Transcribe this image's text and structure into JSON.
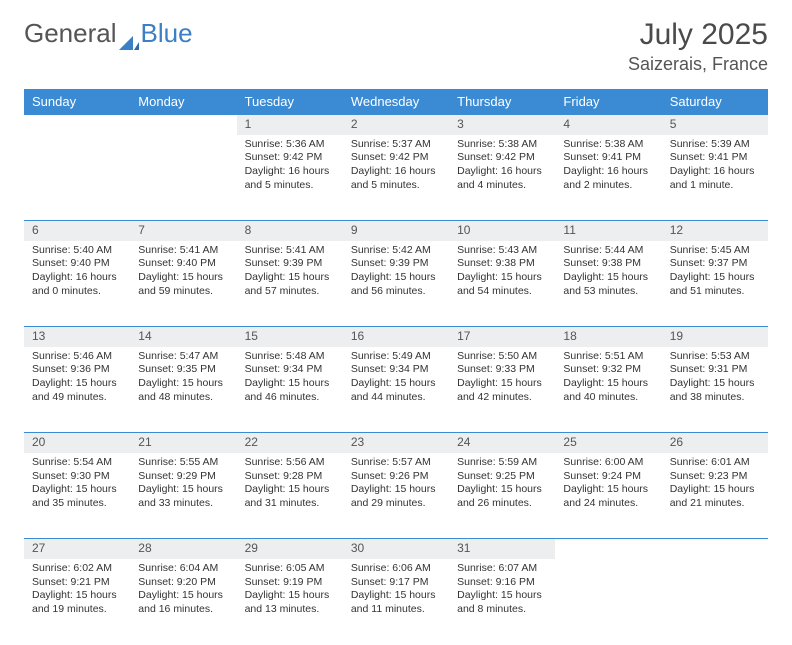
{
  "brand": {
    "part1": "General",
    "part2": "Blue"
  },
  "title": "July 2025",
  "location": "Saizerais, France",
  "colors": {
    "header_bg": "#3b8bd4",
    "header_text": "#ffffff",
    "daynum_bg": "#eceef0",
    "border": "#3b8bd4",
    "body_text": "#333333",
    "page_bg": "#ffffff"
  },
  "day_headers": [
    "Sunday",
    "Monday",
    "Tuesday",
    "Wednesday",
    "Thursday",
    "Friday",
    "Saturday"
  ],
  "weeks": [
    [
      null,
      null,
      {
        "n": "1",
        "sunrise": "5:36 AM",
        "sunset": "9:42 PM",
        "daylight": "16 hours and 5 minutes."
      },
      {
        "n": "2",
        "sunrise": "5:37 AM",
        "sunset": "9:42 PM",
        "daylight": "16 hours and 5 minutes."
      },
      {
        "n": "3",
        "sunrise": "5:38 AM",
        "sunset": "9:42 PM",
        "daylight": "16 hours and 4 minutes."
      },
      {
        "n": "4",
        "sunrise": "5:38 AM",
        "sunset": "9:41 PM",
        "daylight": "16 hours and 2 minutes."
      },
      {
        "n": "5",
        "sunrise": "5:39 AM",
        "sunset": "9:41 PM",
        "daylight": "16 hours and 1 minute."
      }
    ],
    [
      {
        "n": "6",
        "sunrise": "5:40 AM",
        "sunset": "9:40 PM",
        "daylight": "16 hours and 0 minutes."
      },
      {
        "n": "7",
        "sunrise": "5:41 AM",
        "sunset": "9:40 PM",
        "daylight": "15 hours and 59 minutes."
      },
      {
        "n": "8",
        "sunrise": "5:41 AM",
        "sunset": "9:39 PM",
        "daylight": "15 hours and 57 minutes."
      },
      {
        "n": "9",
        "sunrise": "5:42 AM",
        "sunset": "9:39 PM",
        "daylight": "15 hours and 56 minutes."
      },
      {
        "n": "10",
        "sunrise": "5:43 AM",
        "sunset": "9:38 PM",
        "daylight": "15 hours and 54 minutes."
      },
      {
        "n": "11",
        "sunrise": "5:44 AM",
        "sunset": "9:38 PM",
        "daylight": "15 hours and 53 minutes."
      },
      {
        "n": "12",
        "sunrise": "5:45 AM",
        "sunset": "9:37 PM",
        "daylight": "15 hours and 51 minutes."
      }
    ],
    [
      {
        "n": "13",
        "sunrise": "5:46 AM",
        "sunset": "9:36 PM",
        "daylight": "15 hours and 49 minutes."
      },
      {
        "n": "14",
        "sunrise": "5:47 AM",
        "sunset": "9:35 PM",
        "daylight": "15 hours and 48 minutes."
      },
      {
        "n": "15",
        "sunrise": "5:48 AM",
        "sunset": "9:34 PM",
        "daylight": "15 hours and 46 minutes."
      },
      {
        "n": "16",
        "sunrise": "5:49 AM",
        "sunset": "9:34 PM",
        "daylight": "15 hours and 44 minutes."
      },
      {
        "n": "17",
        "sunrise": "5:50 AM",
        "sunset": "9:33 PM",
        "daylight": "15 hours and 42 minutes."
      },
      {
        "n": "18",
        "sunrise": "5:51 AM",
        "sunset": "9:32 PM",
        "daylight": "15 hours and 40 minutes."
      },
      {
        "n": "19",
        "sunrise": "5:53 AM",
        "sunset": "9:31 PM",
        "daylight": "15 hours and 38 minutes."
      }
    ],
    [
      {
        "n": "20",
        "sunrise": "5:54 AM",
        "sunset": "9:30 PM",
        "daylight": "15 hours and 35 minutes."
      },
      {
        "n": "21",
        "sunrise": "5:55 AM",
        "sunset": "9:29 PM",
        "daylight": "15 hours and 33 minutes."
      },
      {
        "n": "22",
        "sunrise": "5:56 AM",
        "sunset": "9:28 PM",
        "daylight": "15 hours and 31 minutes."
      },
      {
        "n": "23",
        "sunrise": "5:57 AM",
        "sunset": "9:26 PM",
        "daylight": "15 hours and 29 minutes."
      },
      {
        "n": "24",
        "sunrise": "5:59 AM",
        "sunset": "9:25 PM",
        "daylight": "15 hours and 26 minutes."
      },
      {
        "n": "25",
        "sunrise": "6:00 AM",
        "sunset": "9:24 PM",
        "daylight": "15 hours and 24 minutes."
      },
      {
        "n": "26",
        "sunrise": "6:01 AM",
        "sunset": "9:23 PM",
        "daylight": "15 hours and 21 minutes."
      }
    ],
    [
      {
        "n": "27",
        "sunrise": "6:02 AM",
        "sunset": "9:21 PM",
        "daylight": "15 hours and 19 minutes."
      },
      {
        "n": "28",
        "sunrise": "6:04 AM",
        "sunset": "9:20 PM",
        "daylight": "15 hours and 16 minutes."
      },
      {
        "n": "29",
        "sunrise": "6:05 AM",
        "sunset": "9:19 PM",
        "daylight": "15 hours and 13 minutes."
      },
      {
        "n": "30",
        "sunrise": "6:06 AM",
        "sunset": "9:17 PM",
        "daylight": "15 hours and 11 minutes."
      },
      {
        "n": "31",
        "sunrise": "6:07 AM",
        "sunset": "9:16 PM",
        "daylight": "15 hours and 8 minutes."
      },
      null,
      null
    ]
  ]
}
